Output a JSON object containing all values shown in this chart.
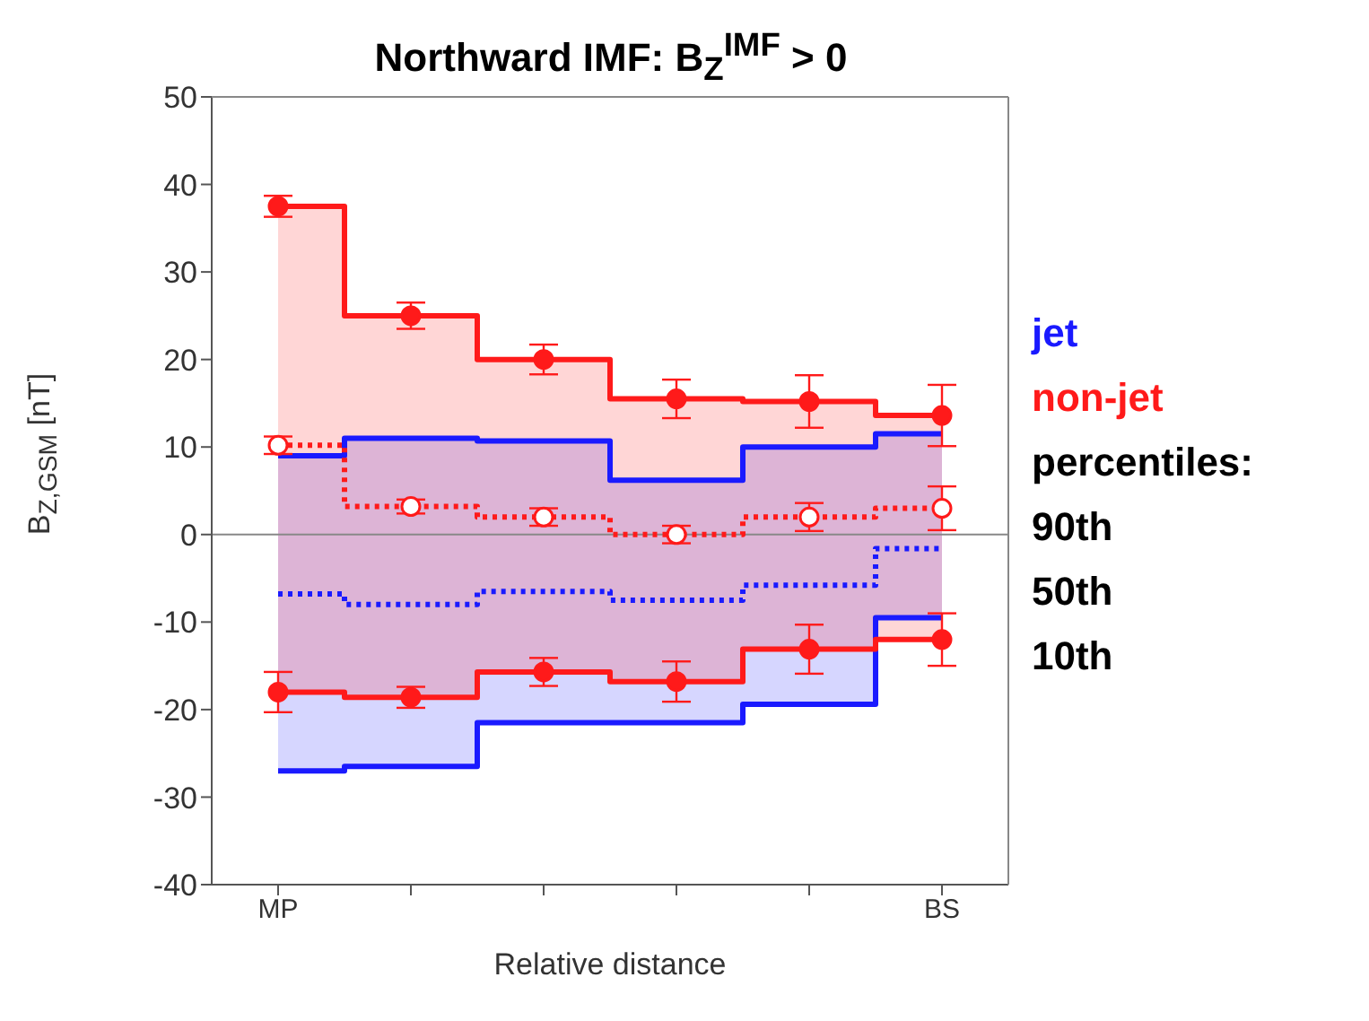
{
  "chart_data": {
    "type": "step",
    "title": "Northward IMF: B$_{Z}$$^{IMF}$ > 0",
    "xlabel": "Relative distance",
    "ylabel": "B$_{Z,GSM}$ [nT]",
    "categories": [
      "MP",
      null,
      null,
      null,
      null,
      "BS"
    ],
    "ylim": [
      -40,
      50
    ],
    "yticks": [
      -40,
      -30,
      -20,
      -10,
      0,
      10,
      20,
      30,
      40,
      50
    ],
    "legend": "right",
    "series": [
      {
        "name": "jet",
        "color": "#1a1aff",
        "line_style": "solid",
        "marker": "none",
        "values": [
          9,
          11,
          10.7,
          6.2,
          10,
          11.5
        ]
      },
      {
        "color": "#1a1aff",
        "line_style": "dotted",
        "marker": "none",
        "values": [
          -6.8,
          -8,
          -6.5,
          -7.5,
          -5.8,
          -1.6
        ],
        "lower": [
          -27,
          -26.5,
          -21.5,
          -21.5,
          -19.4,
          -9.5
        ],
        "upper": [
          9,
          11,
          10.7,
          6.2,
          10,
          11.5
        ]
      },
      {
        "color": "#1a1aff",
        "line_style": "solid",
        "marker": "none",
        "values": [
          -27,
          -26.5,
          -21.5,
          -21.5,
          -19.4,
          -9.5
        ]
      },
      {
        "name": "non-jet",
        "color": "#ff1a1a",
        "line_style": "solid",
        "marker": "circle",
        "values": [
          37.5,
          25,
          20,
          15.5,
          15.2,
          13.6
        ],
        "errors": [
          1.2,
          1.5,
          1.7,
          2.2,
          3,
          3.5
        ]
      },
      {
        "color": "#ff1a1a",
        "line_style": "dotted",
        "marker": "circle",
        "values": [
          10.2,
          3.2,
          2,
          0,
          2,
          3
        ],
        "errors": [
          1,
          0.8,
          1,
          1,
          1.6,
          2.5
        ],
        "lower": [
          -18,
          -18.6,
          -15.7,
          -16.8,
          -13.1,
          -12
        ],
        "upper": [
          37.5,
          25,
          20,
          15.5,
          15.2,
          13.6
        ]
      },
      {
        "color": "#ff1a1a",
        "line_style": "solid",
        "marker": "circle",
        "values": [
          -18,
          -18.6,
          -15.7,
          -16.8,
          -13.1,
          -12
        ],
        "errors": [
          2.3,
          1.2,
          1.6,
          2.3,
          2.8,
          3
        ]
      }
    ],
    "ref_lines": [
      {
        "axis": "y",
        "value": 0,
        "color": "#888888"
      }
    ],
    "annotations": [
      "percentiles:",
      "90th",
      "50th",
      "10th"
    ]
  }
}
